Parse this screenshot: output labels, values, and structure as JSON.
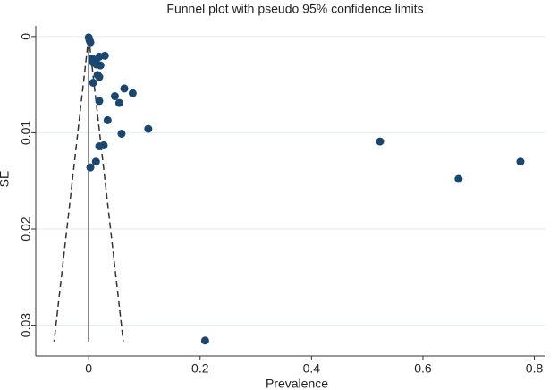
{
  "chart_data": {
    "type": "scatter",
    "title": "Funnel plot with pseudo 95% confidence limits",
    "x_label": "Prevalence",
    "y_label": "SE",
    "x": [
      0.0,
      0.0016,
      0.003,
      0.006,
      0.013,
      0.019,
      0.029,
      0.021,
      0.014,
      0.008,
      0.016,
      0.019,
      0.008,
      0.064,
      0.079,
      0.047,
      0.055,
      0.019,
      0.034,
      0.107,
      0.059,
      0.019,
      0.027,
      0.013,
      0.003,
      0.523,
      0.664,
      0.775,
      0.209
    ],
    "values": [
      0.0001,
      0.0004,
      0.0006,
      0.0023,
      0.0025,
      0.0021,
      0.002,
      0.003,
      0.0029,
      0.0027,
      0.004,
      0.0042,
      0.0048,
      0.0054,
      0.0059,
      0.0062,
      0.0069,
      0.0067,
      0.0087,
      0.0096,
      0.0101,
      0.0114,
      0.0113,
      0.013,
      0.0136,
      0.0109,
      0.0148,
      0.013,
      0.0316
    ],
    "color": "#1a476f",
    "xlim": [
      -0.095,
      0.82
    ],
    "xticks": [
      0,
      0.2,
      0.4,
      0.6,
      0.8
    ],
    "ylim": [
      -0.0011,
      0.0332
    ],
    "yticks": [
      0,
      0.01,
      0.02,
      0.03
    ],
    "y_reversed": true,
    "grid": true,
    "funnel": {
      "center": 0,
      "se_max": 0.0317,
      "z": 1.96
    }
  }
}
